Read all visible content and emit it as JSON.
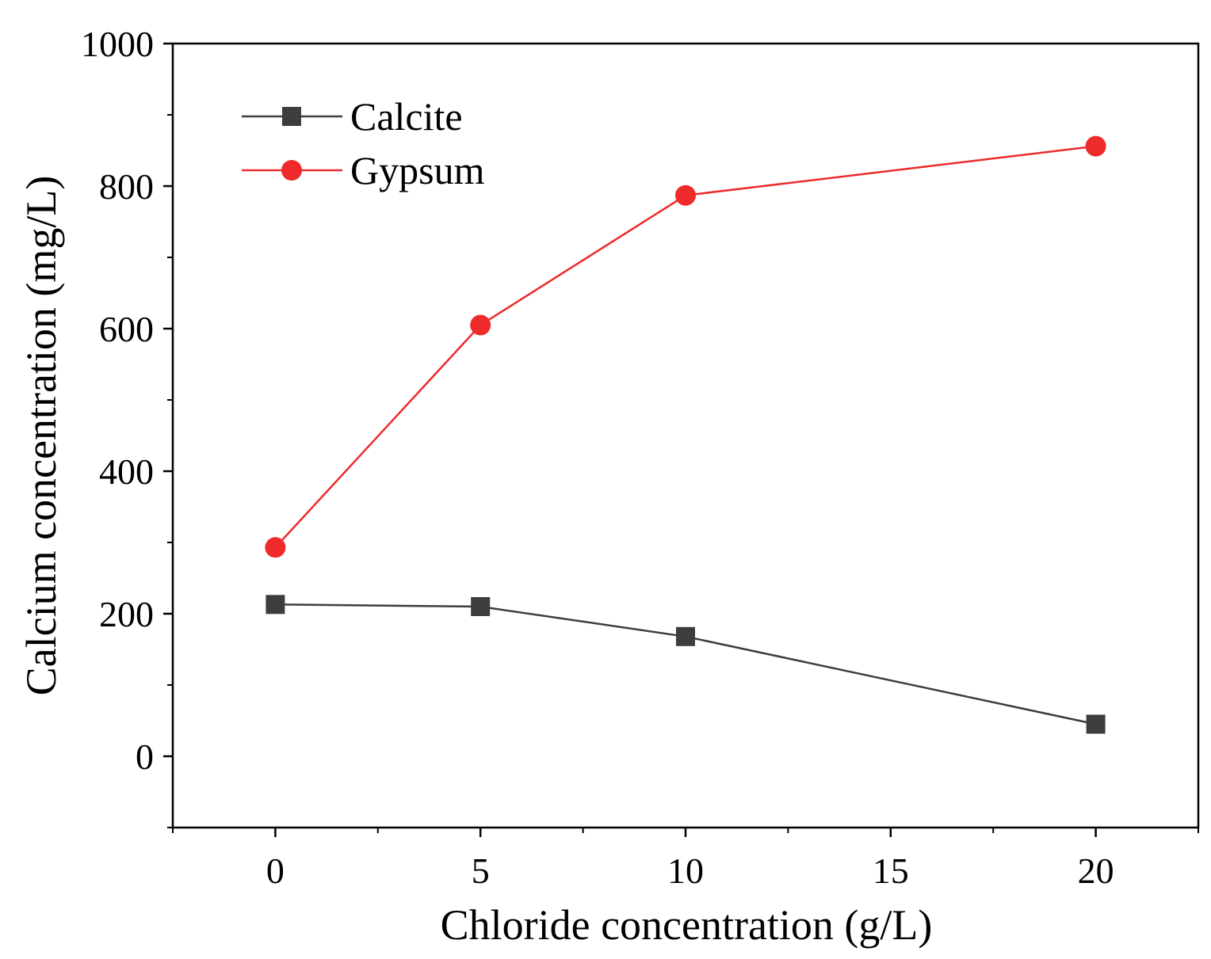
{
  "chart_data": {
    "type": "line",
    "title": "",
    "xlabel": "Chloride concentration (g/L)",
    "ylabel": "Calcium concentration (mg/L)",
    "x": [
      0,
      5,
      10,
      20
    ],
    "xlim": [
      -2.5,
      22.5
    ],
    "ylim": [
      -100,
      1000
    ],
    "x_major_ticks": [
      0,
      5,
      10,
      15,
      20
    ],
    "x_tick_labels": [
      "0",
      "5",
      "10",
      "15",
      "20"
    ],
    "x_minor_ticks": [
      -2.5,
      2.5,
      7.5,
      12.5,
      17.5,
      22.5
    ],
    "y_major_ticks": [
      0,
      200,
      400,
      600,
      800,
      1000
    ],
    "y_tick_labels": [
      "0",
      "200",
      "400",
      "600",
      "800",
      "1000"
    ],
    "y_minor_ticks": [
      -100,
      100,
      300,
      500,
      700,
      900
    ],
    "grid": false,
    "legend_position": "top-left",
    "series": [
      {
        "name": "Calcite",
        "values": [
          213,
          210,
          168,
          45
        ],
        "color": "#3d3d3d",
        "marker": "square"
      },
      {
        "name": "Gypsum",
        "values": [
          293,
          605,
          787,
          856
        ],
        "color": "#ee2a2a",
        "marker": "circle"
      }
    ]
  }
}
